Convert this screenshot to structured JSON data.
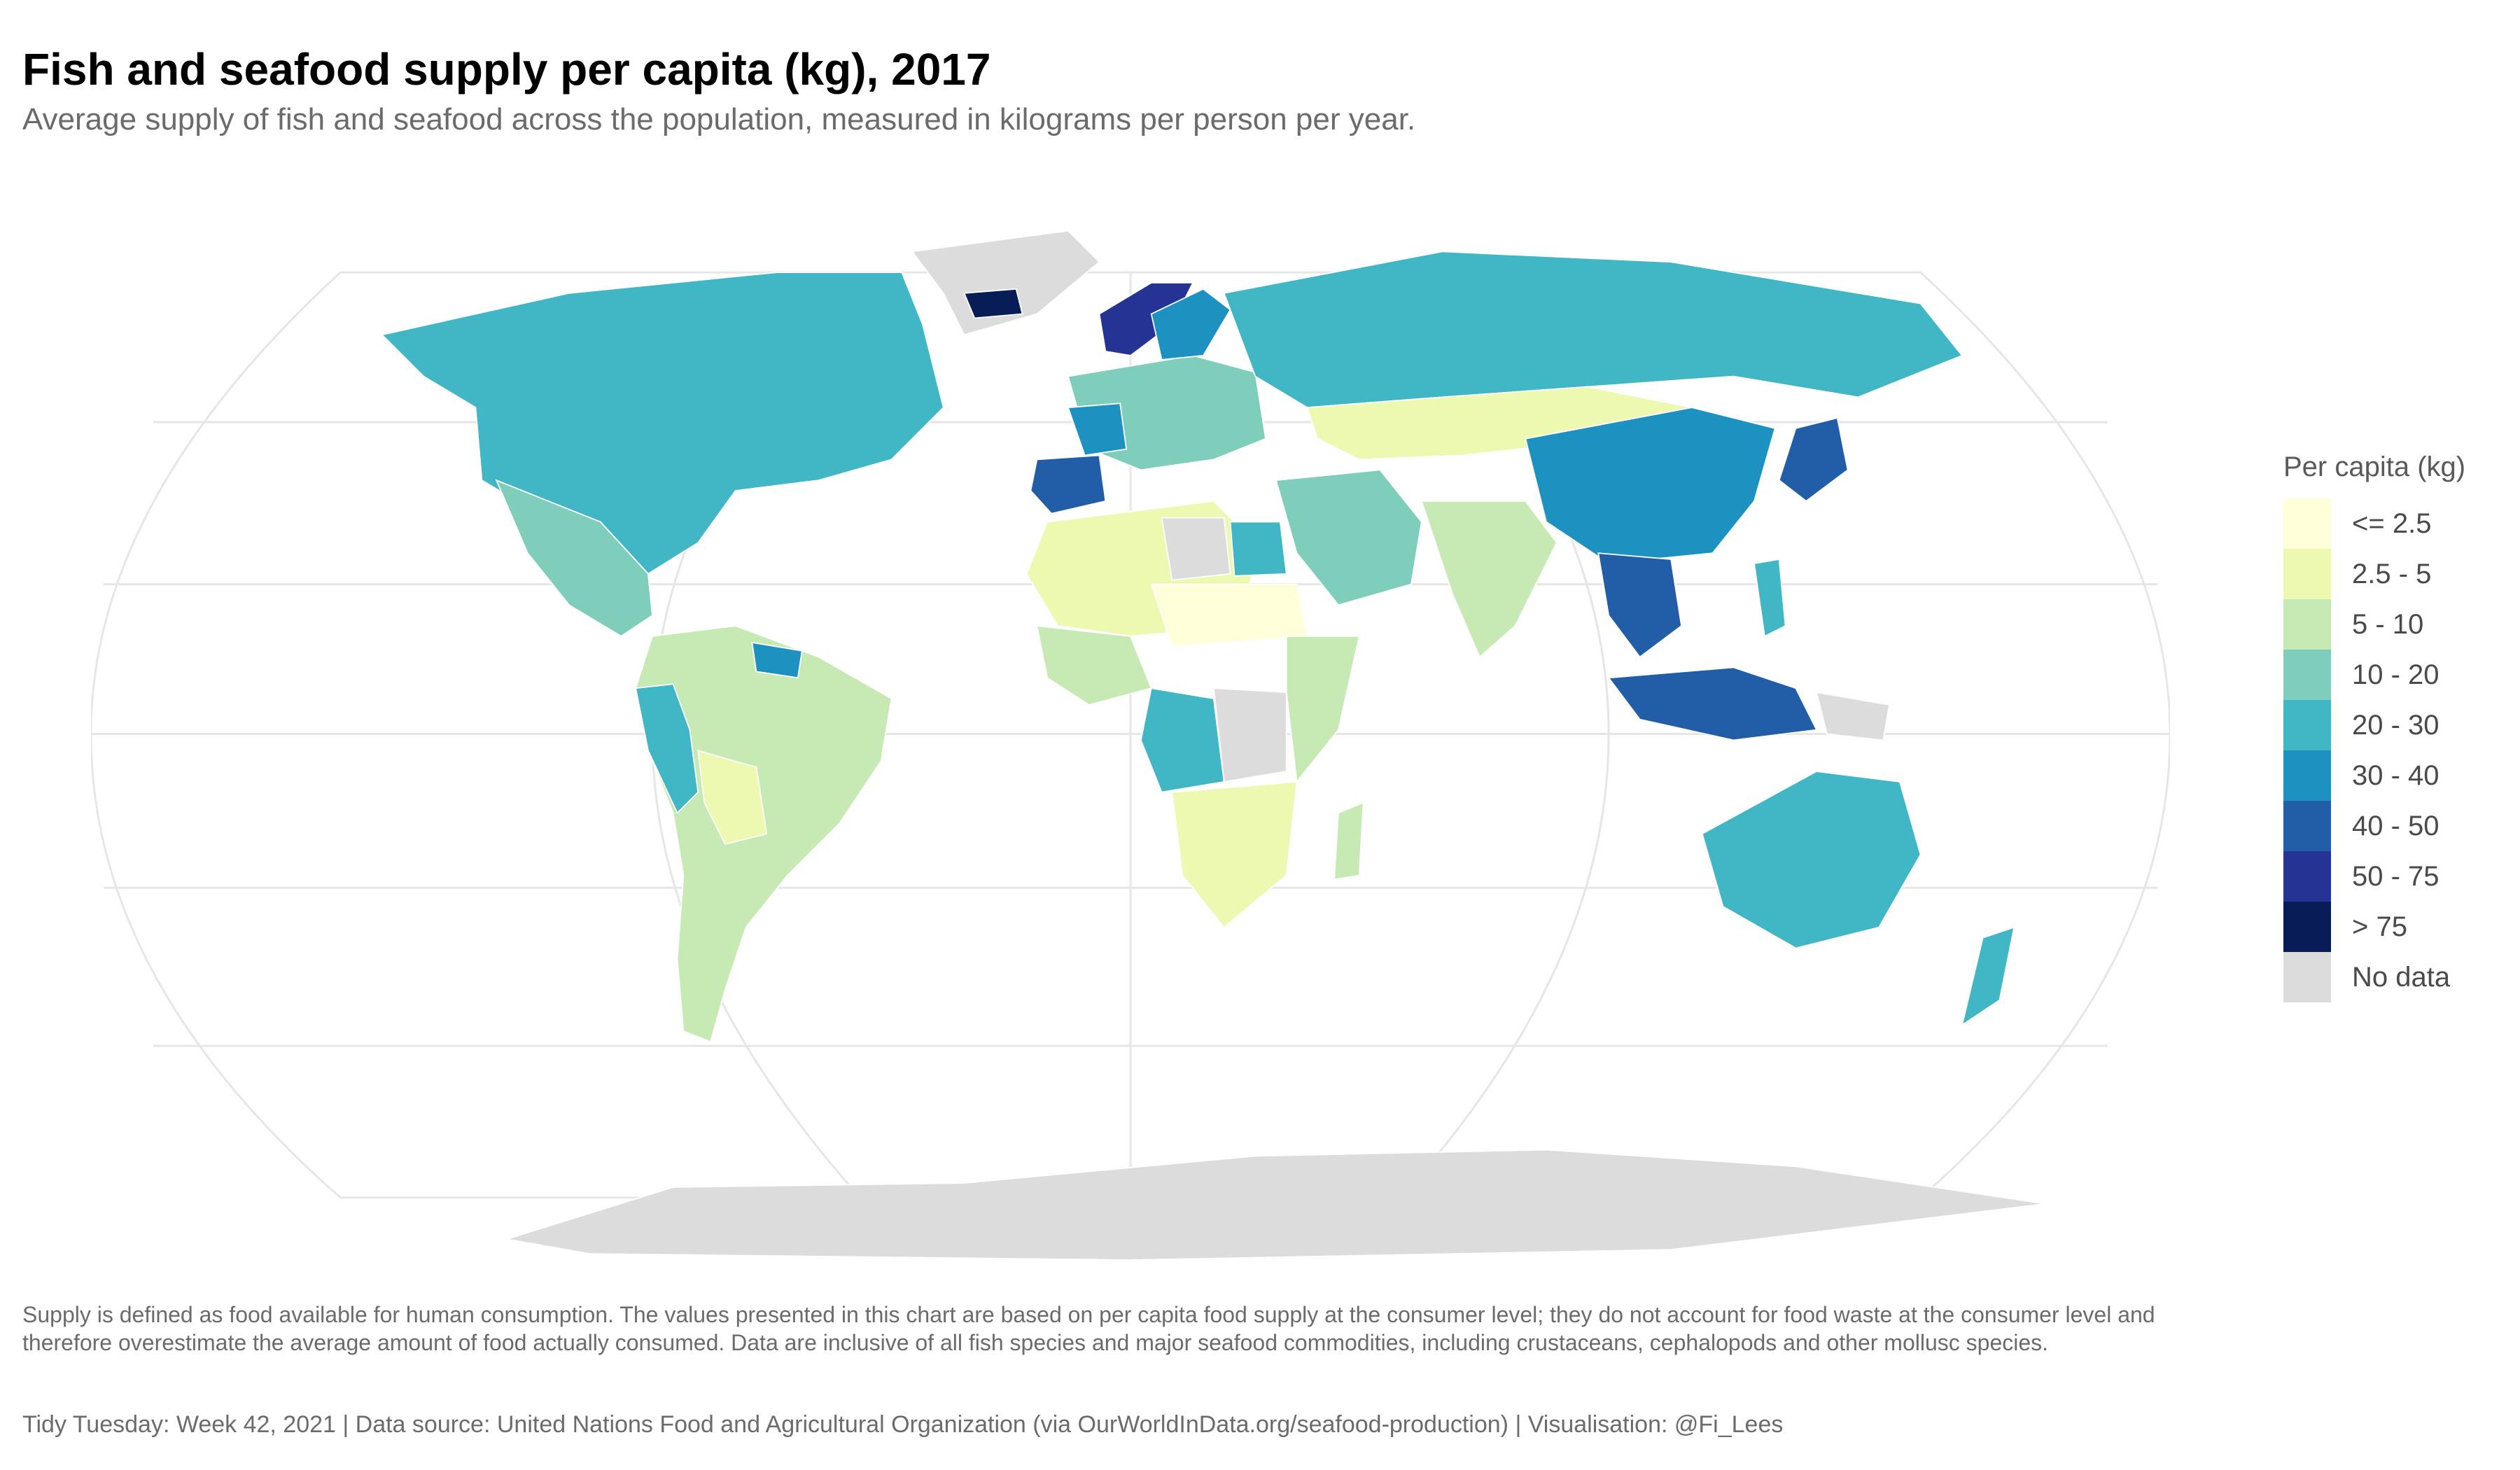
{
  "header": {
    "title": "Fish and seafood supply per capita (kg), 2017",
    "subtitle": "Average supply of fish and seafood across the population, measured in kilograms per person per year."
  },
  "legend": {
    "title": "Per capita (kg)",
    "items": [
      {
        "label": "<= 2.5",
        "color": "#ffffd9"
      },
      {
        "label": "2.5 - 5",
        "color": "#edf8b1"
      },
      {
        "label": "5 - 10",
        "color": "#c7e9b4"
      },
      {
        "label": "10 - 20",
        "color": "#7fcdbb"
      },
      {
        "label": "20 - 30",
        "color": "#41b6c4"
      },
      {
        "label": "30 - 40",
        "color": "#1d91c0"
      },
      {
        "label": "40 - 50",
        "color": "#225ea8"
      },
      {
        "label": "50 - 75",
        "color": "#253494"
      },
      {
        "label": "> 75",
        "color": "#081d58"
      },
      {
        "label": "No data",
        "color": "#dcdcdc"
      }
    ]
  },
  "footer": {
    "note": "Supply is defined as food available for human consumption. The values presented in this chart are based on per capita food supply at the consumer level; they do not account for food waste at the consumer level and therefore overestimate the average amount of food actually consumed. Data are inclusive of all fish species and major seafood commodities, including crustaceans, cephalopods and other mollusc species.",
    "caption": "Tidy Tuesday: Week 42, 2021 | Data source: United Nations Food and Agricultural Organization (via OurWorldInData.org/seafood-production) | Visualisation: @Fi_Lees"
  },
  "map": {
    "projection": "Robinson",
    "regions": [
      {
        "name": "North America (Canada, USA)",
        "class": "20 - 30",
        "color": "#41b6c4"
      },
      {
        "name": "Greenland",
        "class": "No data",
        "color": "#dcdcdc"
      },
      {
        "name": "Mexico / Central America",
        "class": "10 - 20",
        "color": "#7fcdbb"
      },
      {
        "name": "South America",
        "class": "5 - 10",
        "color": "#c7e9b4"
      },
      {
        "name": "Peru / Ecuador",
        "class": "20 - 30",
        "color": "#41b6c4"
      },
      {
        "name": "Bolivia / Paraguay",
        "class": "2.5 - 5",
        "color": "#edf8b1"
      },
      {
        "name": "Guianas",
        "class": "30 - 40",
        "color": "#1d91c0"
      },
      {
        "name": "Western Europe",
        "class": "10 - 20",
        "color": "#7fcdbb"
      },
      {
        "name": "Spain / Portugal",
        "class": "40 - 50",
        "color": "#225ea8"
      },
      {
        "name": "France",
        "class": "30 - 40",
        "color": "#1d91c0"
      },
      {
        "name": "Norway",
        "class": "50 - 75",
        "color": "#253494"
      },
      {
        "name": "Iceland",
        "class": "> 75",
        "color": "#081d58"
      },
      {
        "name": "Sweden / Finland",
        "class": "30 - 40",
        "color": "#1d91c0"
      },
      {
        "name": "Russia",
        "class": "20 - 30",
        "color": "#41b6c4"
      },
      {
        "name": "Central Asia / Mongolia",
        "class": "2.5 - 5",
        "color": "#edf8b1"
      },
      {
        "name": "Middle East",
        "class": "10 - 20",
        "color": "#7fcdbb"
      },
      {
        "name": "South Asia",
        "class": "5 - 10",
        "color": "#c7e9b4"
      },
      {
        "name": "China",
        "class": "30 - 40",
        "color": "#1d91c0"
      },
      {
        "name": "Japan / Korea",
        "class": "40 - 50",
        "color": "#225ea8"
      },
      {
        "name": "Southeast Asia",
        "class": "40 - 50",
        "color": "#225ea8"
      },
      {
        "name": "Indonesia",
        "class": "40 - 50",
        "color": "#225ea8"
      },
      {
        "name": "Papua New Guinea",
        "class": "No data",
        "color": "#dcdcdc"
      },
      {
        "name": "Philippines",
        "class": "20 - 30",
        "color": "#41b6c4"
      },
      {
        "name": "North Africa",
        "class": "2.5 - 5",
        "color": "#edf8b1"
      },
      {
        "name": "Libya",
        "class": "No data",
        "color": "#dcdcdc"
      },
      {
        "name": "Egypt",
        "class": "20 - 30",
        "color": "#41b6c4"
      },
      {
        "name": "West Africa",
        "class": "5 - 10",
        "color": "#c7e9b4"
      },
      {
        "name": "Sahel",
        "class": "<= 2.5",
        "color": "#ffffd9"
      },
      {
        "name": "Central Africa",
        "class": "20 - 30",
        "color": "#41b6c4"
      },
      {
        "name": "DR Congo",
        "class": "No data",
        "color": "#dcdcdc"
      },
      {
        "name": "East Africa",
        "class": "5 - 10",
        "color": "#c7e9b4"
      },
      {
        "name": "Southern Africa",
        "class": "2.5 - 5",
        "color": "#edf8b1"
      },
      {
        "name": "Madagascar",
        "class": "5 - 10",
        "color": "#c7e9b4"
      },
      {
        "name": "Australia",
        "class": "20 - 30",
        "color": "#41b6c4"
      },
      {
        "name": "New Zealand",
        "class": "20 - 30",
        "color": "#41b6c4"
      },
      {
        "name": "Antarctica",
        "class": "No data",
        "color": "#dcdcdc"
      }
    ]
  }
}
